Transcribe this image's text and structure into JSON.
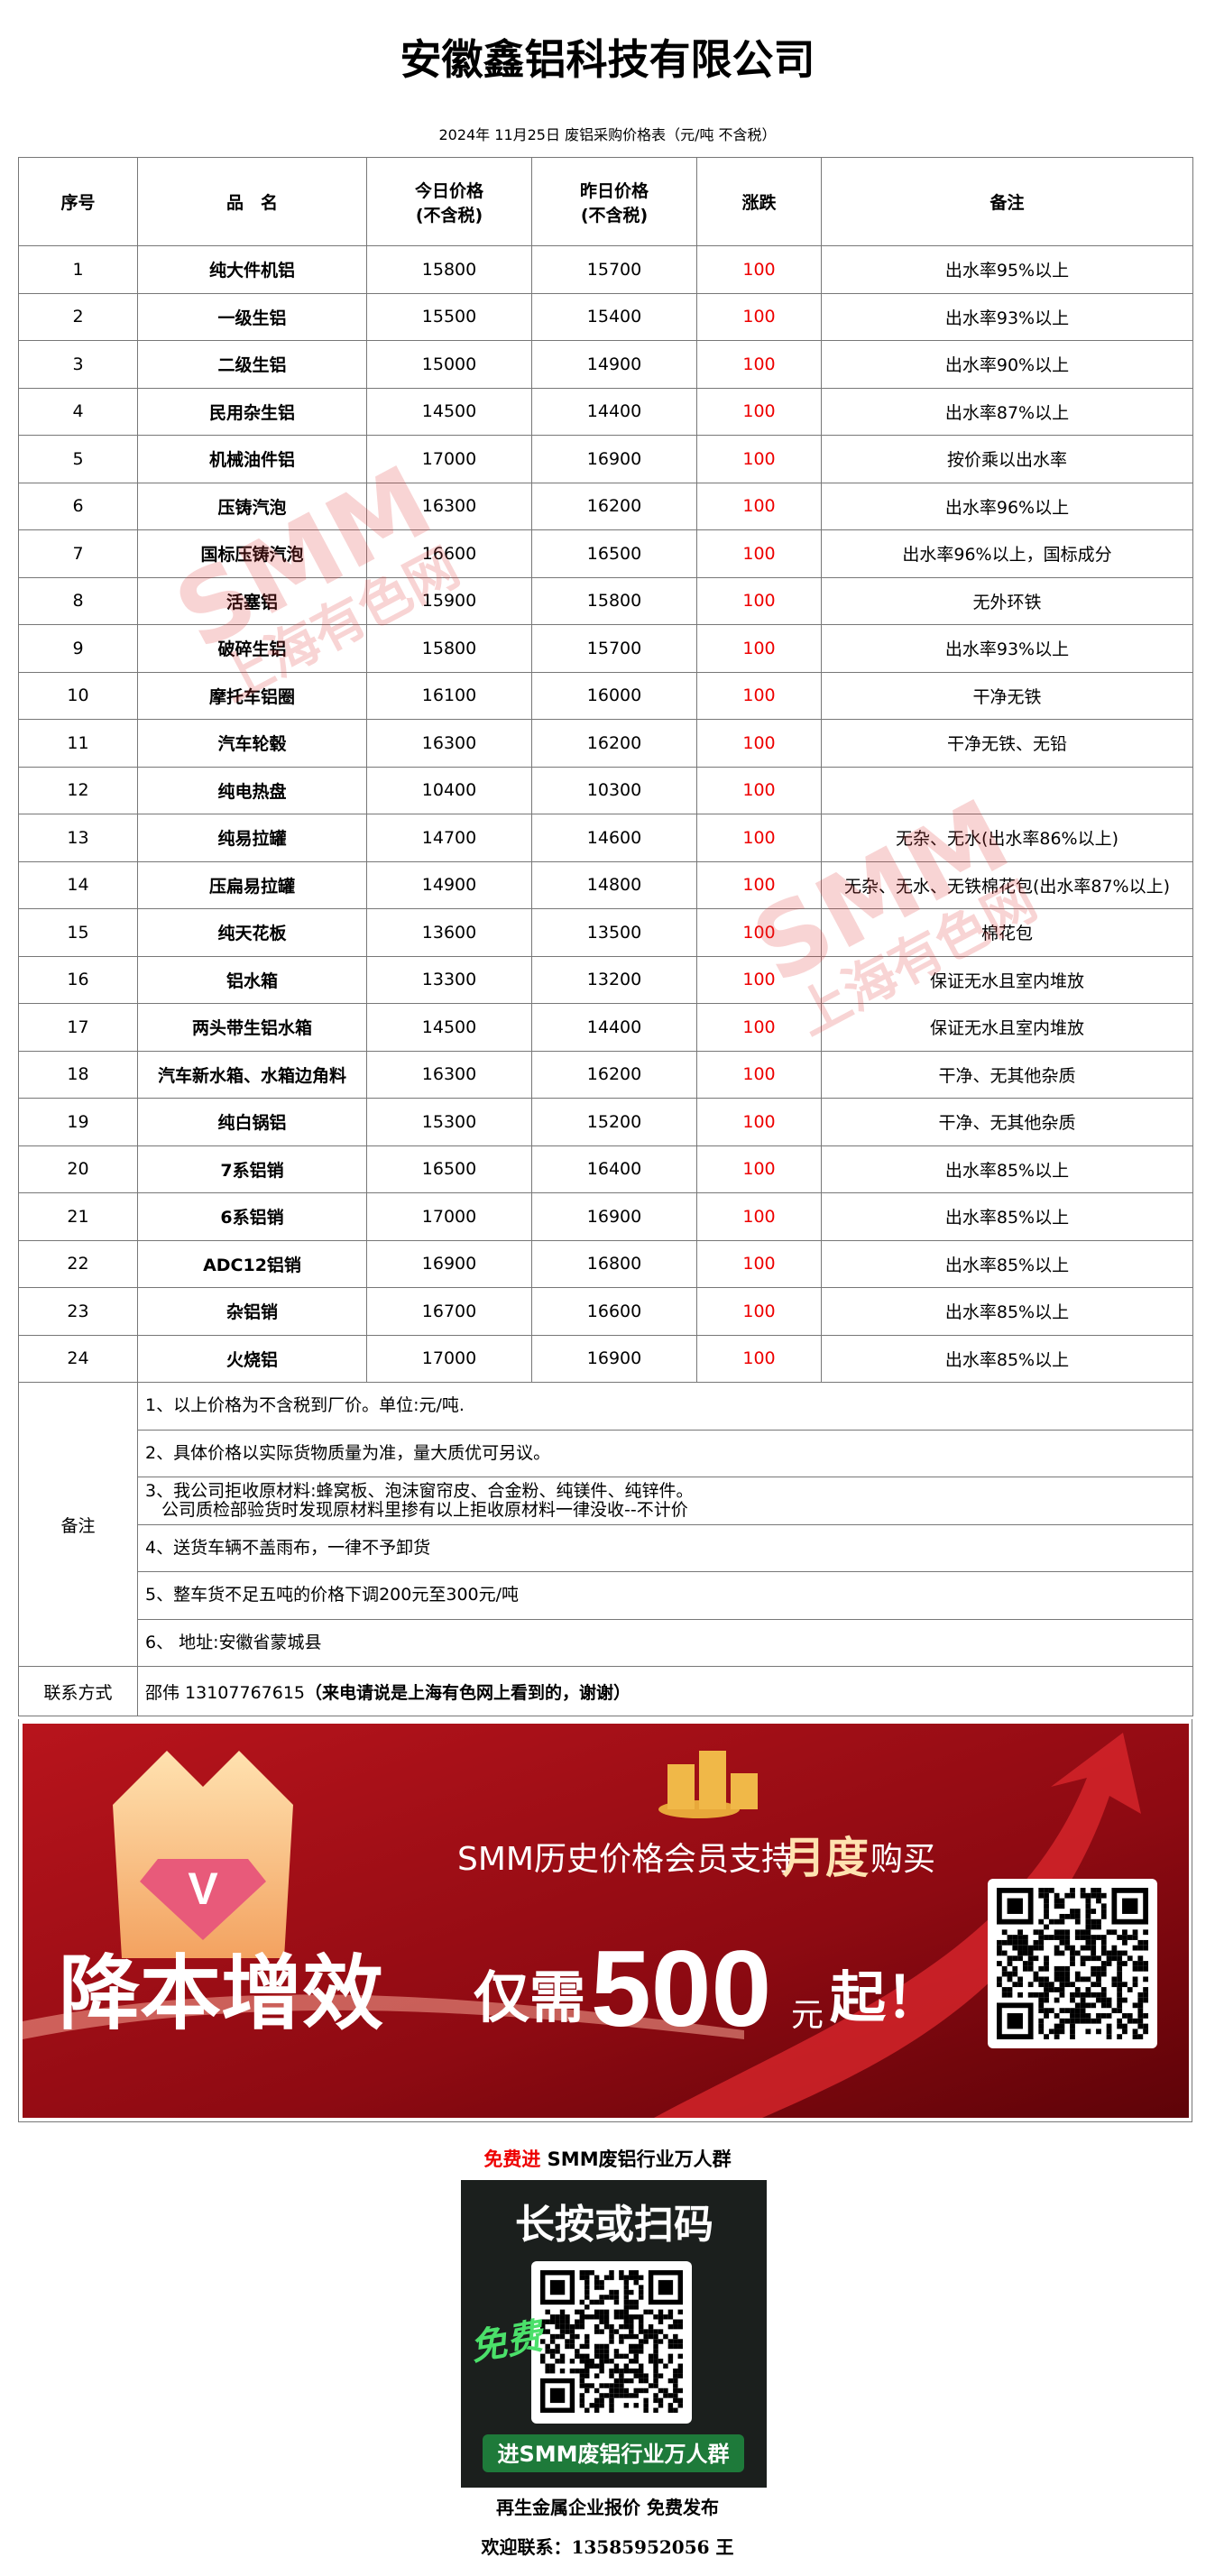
{
  "header": {
    "title": "安徽鑫铝科技有限公司",
    "subtitle": "2024年 11月25日 废铝采购价格表（元/吨  不含税）"
  },
  "table": {
    "header": [
      [
        "序号"
      ],
      [
        "品　名"
      ],
      [
        "今日价格",
        "(不含税)"
      ],
      [
        "昨日价格",
        "(不含税)"
      ],
      [
        "涨跌"
      ],
      [
        "备注"
      ]
    ],
    "rows": [
      [
        1,
        "纯大件机铝",
        15800,
        15700,
        100,
        "出水率95%以上"
      ],
      [
        2,
        "一级生铝",
        15500,
        15400,
        100,
        "出水率93%以上"
      ],
      [
        3,
        "二级生铝",
        15000,
        14900,
        100,
        "出水率90%以上"
      ],
      [
        4,
        "民用杂生铝",
        14500,
        14400,
        100,
        "出水率87%以上"
      ],
      [
        5,
        "机械油件铝",
        17000,
        16900,
        100,
        "按价乘以出水率"
      ],
      [
        6,
        "压铸汽泡",
        16300,
        16200,
        100,
        "出水率96%以上"
      ],
      [
        7,
        "国标压铸汽泡",
        16600,
        16500,
        100,
        "出水率96%以上，国标成分"
      ],
      [
        8,
        "活塞铝",
        15900,
        15800,
        100,
        "无外环铁"
      ],
      [
        9,
        "破碎生铝",
        15800,
        15700,
        100,
        "出水率93%以上"
      ],
      [
        10,
        "摩托车铝圈",
        16100,
        16000,
        100,
        "干净无铁"
      ],
      [
        11,
        "汽车轮毂",
        16300,
        16200,
        100,
        "干净无铁、无铅"
      ],
      [
        12,
        "纯电热盘",
        10400,
        10300,
        100,
        null
      ],
      [
        13,
        "纯易拉罐",
        14700,
        14600,
        100,
        "无杂、无水(出水率86%以上)"
      ],
      [
        14,
        "压扁易拉罐",
        14900,
        14800,
        100,
        "无杂、无水、无铁棉花包(出水率87%以上)"
      ],
      [
        15,
        "纯天花板",
        13600,
        13500,
        100,
        "棉花包"
      ],
      [
        16,
        "铝水箱",
        13300,
        13200,
        100,
        "保证无水且室内堆放"
      ],
      [
        17,
        "两头带生铝水箱",
        14500,
        14400,
        100,
        "保证无水且室内堆放"
      ],
      [
        18,
        "汽车新水箱、水箱边角料",
        16300,
        16200,
        100,
        "干净、无其他杂质"
      ],
      [
        19,
        "纯白锅铝",
        15300,
        15200,
        100,
        "干净、无其他杂质"
      ],
      [
        20,
        "7系铝销",
        16500,
        16400,
        100,
        "出水率85%以上"
      ],
      [
        21,
        "6系铝销",
        17000,
        16900,
        100,
        "出水率85%以上"
      ],
      [
        22,
        "ADC12铝销",
        16900,
        16800,
        100,
        "出水率85%以上"
      ],
      [
        23,
        "杂铝销",
        16700,
        16600,
        100,
        "出水率85%以上"
      ],
      [
        24,
        "火烧铝",
        17000,
        16900,
        100,
        "出水率85%以上"
      ]
    ],
    "notes_label": "备注",
    "notes": [
      [
        "1、以上价格为不含税到厂价。单位:元/吨."
      ],
      [
        "2、具体价格以实际货物质量为准，量大质优可另议。"
      ],
      [
        "3、我公司拒收原材料:蜂窝板、泡沫窗帘皮、合金粉、纯镁件、纯锌件。",
        "公司质检部验货时发现原材料里掺有以上拒收原材料一律没收--不计价"
      ],
      [
        "4、送货车辆不盖雨布，一律不予卸货"
      ],
      [
        "5、整车货不足五吨的价格下调200元至300元/吨"
      ],
      [
        "6、 地址:安徽省蒙城县"
      ]
    ],
    "contact_label": "联系方式",
    "contact": "邵伟 13107767615",
    "contact_note": "（来电请说是上海有色网上看到的，谢谢）"
  },
  "watermark": {
    "logo": "SMM",
    "text": "上海有色网"
  },
  "banner": {
    "line1a": "SMM历史价格会员支持",
    "line1b": "月度",
    "line1c": "购买",
    "slogan": "降本增效",
    "only": "仅需",
    "price": "500",
    "unit": "元",
    "from": "起！"
  },
  "group": {
    "free": "免费进",
    "name": " SMM废铝行业万人群",
    "scan": "长按或扫码",
    "badge": "免费",
    "bar": "进SMM废铝行业万人群"
  },
  "footer": {
    "line1": "再生金属企业报价  免费发布",
    "line2": "欢迎联系：13585952056  王"
  }
}
